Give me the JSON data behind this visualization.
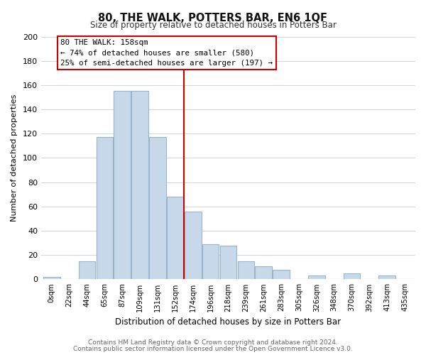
{
  "title": "80, THE WALK, POTTERS BAR, EN6 1QF",
  "subtitle": "Size of property relative to detached houses in Potters Bar",
  "xlabel": "Distribution of detached houses by size in Potters Bar",
  "ylabel": "Number of detached properties",
  "bar_labels": [
    "0sqm",
    "22sqm",
    "44sqm",
    "65sqm",
    "87sqm",
    "109sqm",
    "131sqm",
    "152sqm",
    "174sqm",
    "196sqm",
    "218sqm",
    "239sqm",
    "261sqm",
    "283sqm",
    "305sqm",
    "326sqm",
    "348sqm",
    "370sqm",
    "392sqm",
    "413sqm",
    "435sqm"
  ],
  "bar_values": [
    2,
    0,
    15,
    117,
    155,
    155,
    117,
    68,
    56,
    29,
    28,
    15,
    11,
    8,
    0,
    3,
    0,
    5,
    0,
    3,
    0
  ],
  "bar_color": "#c8d8eb",
  "bar_edge_color": "#9ab4cc",
  "vline_x": 7.5,
  "vline_color": "#cc0000",
  "annotation_title": "80 THE WALK: 158sqm",
  "annotation_line1": "← 74% of detached houses are smaller (580)",
  "annotation_line2": "25% of semi-detached houses are larger (197) →",
  "annotation_box_color": "#ffffff",
  "annotation_box_edge": "#cc0000",
  "ylim": [
    0,
    200
  ],
  "yticks": [
    0,
    20,
    40,
    60,
    80,
    100,
    120,
    140,
    160,
    180,
    200
  ],
  "footer1": "Contains HM Land Registry data © Crown copyright and database right 2024.",
  "footer2": "Contains public sector information licensed under the Open Government Licence v3.0.",
  "bg_color": "#ffffff",
  "plot_bg_color": "#ffffff",
  "grid_color": "#d0d8e0"
}
